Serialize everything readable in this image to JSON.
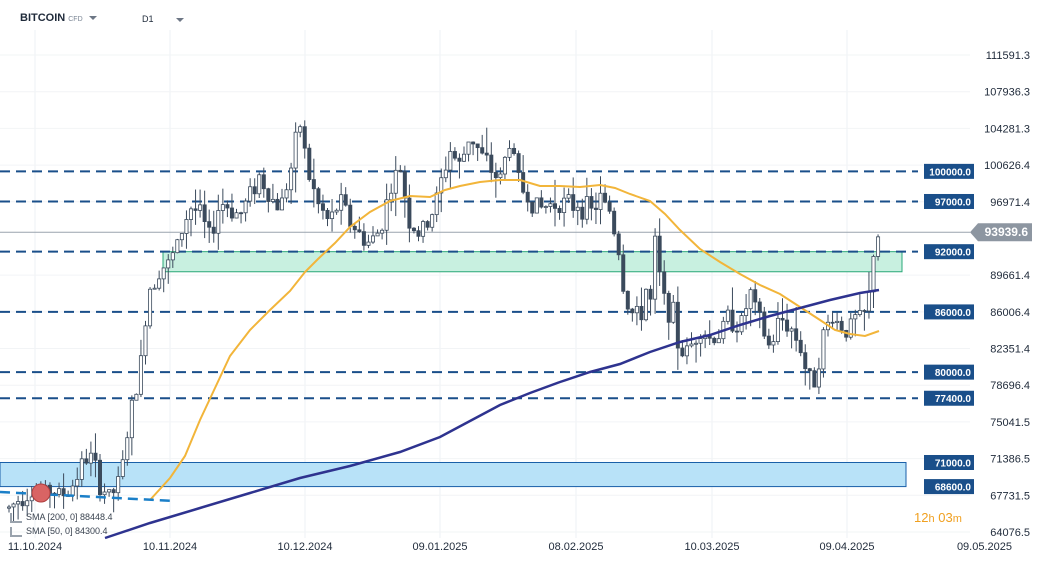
{
  "header": {
    "symbol": "BITCOIN",
    "instrument_type": "CFD",
    "timeframe": "D1"
  },
  "legend": {
    "sma200": "SMA [200, 0] 88448.4",
    "sma50": "SMA [50, 0] 84300.4"
  },
  "countdown": {
    "hours": "12",
    "hours_unit": "h",
    "minutes": "03",
    "minutes_unit": "m"
  },
  "colors": {
    "candle": "#3b4a5c",
    "level_line": "#1a4f8a",
    "label_bg": "#1a4f8a",
    "sma50": "#f2b53a",
    "sma200": "#2e338f",
    "zone_green": "#c8f0e0",
    "zone_green_border": "#2aa878",
    "zone_blue": "#b8e2f8",
    "zone_blue_border": "#1a5fa8",
    "current_price_bg": "#8d96a1",
    "marker": "#d96464"
  },
  "chart_data": {
    "type": "candlestick",
    "title": "",
    "xlabel": "",
    "ylabel": "",
    "grid": true,
    "ylim": [
      64076.5,
      111591.3
    ],
    "y_ticks": [
      111591.3,
      107936.3,
      104281.3,
      100626.4,
      96971.4,
      93939.6,
      89661.4,
      86006.4,
      82351.4,
      78696.4,
      75041.5,
      71386.5,
      67731.5,
      64076.5
    ],
    "x_ticks": [
      "11.10.2024",
      "10.11.2024",
      "10.12.2024",
      "09.01.2025",
      "08.02.2025",
      "10.03.2025",
      "09.04.2025",
      "09.05.2025"
    ],
    "current_price": 93939.6,
    "horizontal_levels": [
      100000.0,
      97000.0,
      92000.0,
      86000.0,
      80000.0,
      77400.0,
      71000.0,
      68600.0
    ],
    "level_labels": [
      "100000.0",
      "97000.0",
      "92000.0",
      "86000.0",
      "80000.0",
      "77400.0",
      "71000.0",
      "68600.0"
    ],
    "zones": [
      {
        "name": "resistance-zone",
        "from": 90000,
        "to": 92000
      },
      {
        "name": "support-zone",
        "from": 68600,
        "to": 71000
      }
    ],
    "series": [
      {
        "name": "SMA [200, 0]",
        "value": 88448.4
      },
      {
        "name": "SMA [50, 0]",
        "value": 84300.4
      }
    ]
  }
}
